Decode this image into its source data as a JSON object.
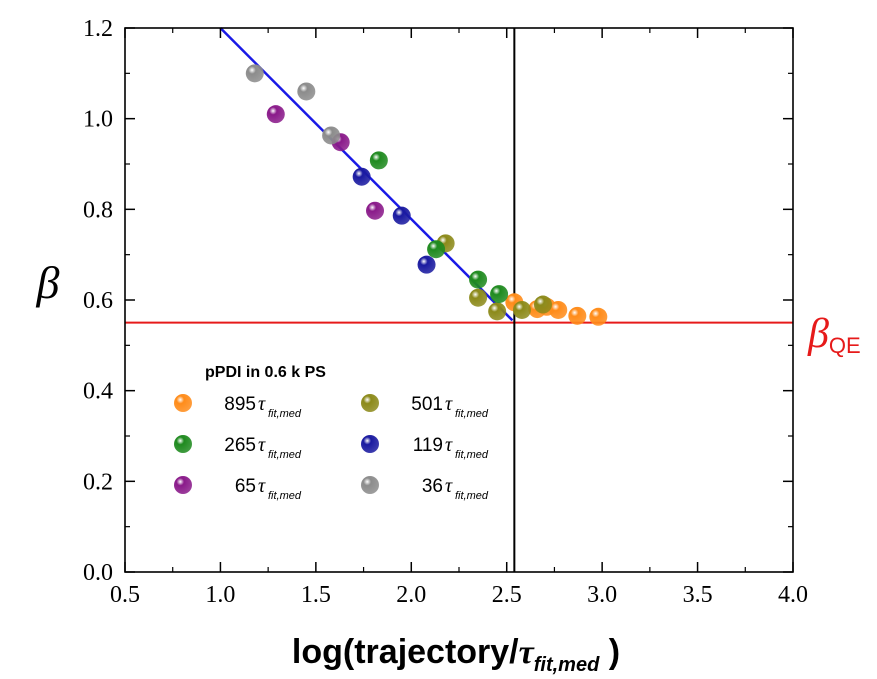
{
  "chart_data": {
    "type": "scatter",
    "xlabel": {
      "prefix": "log(trajectory/",
      "symbol": "τ",
      "subscript": "fit,med",
      "suffix": " )"
    },
    "ylabel": "β",
    "xlim": [
      0.5,
      4.0
    ],
    "ylim": [
      0.0,
      1.2
    ],
    "x_ticks": [
      "0.5",
      "1.0",
      "1.5",
      "2.0",
      "2.5",
      "3.0",
      "3.5",
      "4.0"
    ],
    "y_ticks": [
      "0.0",
      "0.2",
      "0.4",
      "0.6",
      "0.8",
      "1.0",
      "1.2"
    ],
    "grid": false,
    "legend": {
      "title": "pPDI in 0.6 k PS",
      "placement": "lower-left",
      "tau_symbol": "τ",
      "tau_subscript": "fit,med"
    },
    "series": [
      {
        "name": "895",
        "color": "#ff8c1a",
        "x": [
          2.54,
          2.66,
          2.71,
          2.77,
          2.87,
          2.98
        ],
        "y": [
          0.595,
          0.58,
          0.585,
          0.578,
          0.565,
          0.563
        ]
      },
      {
        "name": "501",
        "color": "#8c8a1a",
        "x": [
          2.18,
          2.35,
          2.45,
          2.58,
          2.69
        ],
        "y": [
          0.725,
          0.605,
          0.575,
          0.578,
          0.59
        ]
      },
      {
        "name": "265",
        "color": "#1f8a1f",
        "x": [
          1.83,
          2.13,
          2.35,
          2.46
        ],
        "y": [
          0.908,
          0.712,
          0.645,
          0.613
        ]
      },
      {
        "name": "119",
        "color": "#1a1aa0",
        "x": [
          1.74,
          1.95,
          2.08
        ],
        "y": [
          0.872,
          0.786,
          0.678
        ]
      },
      {
        "name": "65",
        "color": "#8a1a8a",
        "x": [
          1.29,
          1.63,
          1.81
        ],
        "y": [
          1.01,
          0.948,
          0.797
        ]
      },
      {
        "name": "36",
        "color": "#8c8c8c",
        "x": [
          1.18,
          1.45,
          1.58
        ],
        "y": [
          1.1,
          1.06,
          0.963
        ]
      }
    ],
    "fit_line": {
      "color": "#1a1ae6",
      "x": [
        1.0,
        2.53
      ],
      "y": [
        1.2,
        0.555
      ]
    },
    "reference_lines": {
      "horizontal": {
        "y": 0.55,
        "color": "#e61a1a"
      },
      "vertical": {
        "x": 2.54,
        "color": "#000000"
      }
    },
    "annotation": {
      "symbol": "β",
      "subscript": "QE",
      "color": "#e61a1a"
    }
  }
}
